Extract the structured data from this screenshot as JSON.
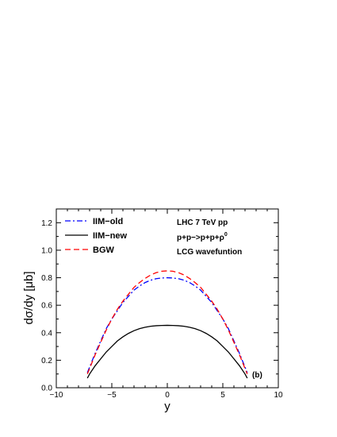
{
  "chart_data": {
    "type": "line",
    "title": "",
    "xlabel": "y",
    "ylabel": "dσ/dy [μb]",
    "xlim": [
      -10,
      10
    ],
    "ylim": [
      0,
      1.3
    ],
    "xticks": [
      -10,
      -5,
      0,
      5,
      10
    ],
    "yticks": [
      0.0,
      0.2,
      0.4,
      0.6,
      0.8,
      1.0,
      1.2
    ],
    "xtick_labels": [
      "−10",
      "−5",
      "0",
      "5",
      "10"
    ],
    "ytick_labels": [
      "0.0",
      "0.2",
      "0.4",
      "0.6",
      "0.8",
      "1.0",
      "1.2"
    ],
    "grid": false,
    "legend_position": "top-left",
    "annotations": {
      "line1": "LHC 7 TeV pp",
      "line2_main": "p+p−>p+p+ρ",
      "line2_sup": "0",
      "line3": "LCG wavefuntion",
      "panel": "(b)"
    },
    "series": [
      {
        "name": "IIM−old",
        "color": "#0000ff",
        "style": "dashdot",
        "x": [
          -7.2,
          -7.0,
          -6.5,
          -6.0,
          -5.5,
          -5.0,
          -4.5,
          -4.0,
          -3.5,
          -3.0,
          -2.5,
          -2.0,
          -1.5,
          -1.0,
          -0.5,
          0.0,
          0.5,
          1.0,
          1.5,
          2.0,
          2.5,
          3.0,
          3.5,
          4.0,
          4.5,
          5.0,
          5.5,
          6.0,
          6.5,
          7.0,
          7.2
        ],
        "y": [
          0.11,
          0.15,
          0.25,
          0.34,
          0.43,
          0.5,
          0.56,
          0.62,
          0.665,
          0.71,
          0.74,
          0.765,
          0.782,
          0.793,
          0.798,
          0.8,
          0.798,
          0.793,
          0.782,
          0.765,
          0.74,
          0.71,
          0.665,
          0.62,
          0.56,
          0.5,
          0.43,
          0.34,
          0.25,
          0.15,
          0.11
        ]
      },
      {
        "name": "IIM−new",
        "color": "#000000",
        "style": "solid",
        "x": [
          -7.2,
          -7.0,
          -6.5,
          -6.0,
          -5.5,
          -5.0,
          -4.5,
          -4.0,
          -3.5,
          -3.0,
          -2.5,
          -2.0,
          -1.5,
          -1.0,
          -0.5,
          0.0,
          0.5,
          1.0,
          1.5,
          2.0,
          2.5,
          3.0,
          3.5,
          4.0,
          4.5,
          5.0,
          5.5,
          6.0,
          6.5,
          7.0,
          7.2
        ],
        "y": [
          0.07,
          0.1,
          0.16,
          0.21,
          0.26,
          0.3,
          0.34,
          0.37,
          0.395,
          0.415,
          0.43,
          0.44,
          0.447,
          0.451,
          0.453,
          0.454,
          0.453,
          0.451,
          0.447,
          0.44,
          0.43,
          0.415,
          0.395,
          0.37,
          0.34,
          0.3,
          0.26,
          0.21,
          0.16,
          0.1,
          0.07
        ]
      },
      {
        "name": "BGW",
        "color": "#ff0000",
        "style": "dashed",
        "x": [
          -7.2,
          -7.0,
          -6.5,
          -6.0,
          -5.5,
          -5.0,
          -4.5,
          -4.0,
          -3.5,
          -3.0,
          -2.5,
          -2.0,
          -1.5,
          -1.0,
          -0.5,
          0.0,
          0.5,
          1.0,
          1.5,
          2.0,
          2.5,
          3.0,
          3.5,
          4.0,
          4.5,
          5.0,
          5.5,
          6.0,
          6.5,
          7.0,
          7.2
        ],
        "y": [
          0.1,
          0.14,
          0.24,
          0.33,
          0.42,
          0.5,
          0.57,
          0.63,
          0.68,
          0.73,
          0.765,
          0.795,
          0.82,
          0.837,
          0.847,
          0.85,
          0.847,
          0.837,
          0.82,
          0.795,
          0.765,
          0.73,
          0.68,
          0.63,
          0.57,
          0.5,
          0.42,
          0.33,
          0.24,
          0.14,
          0.1
        ]
      }
    ]
  }
}
